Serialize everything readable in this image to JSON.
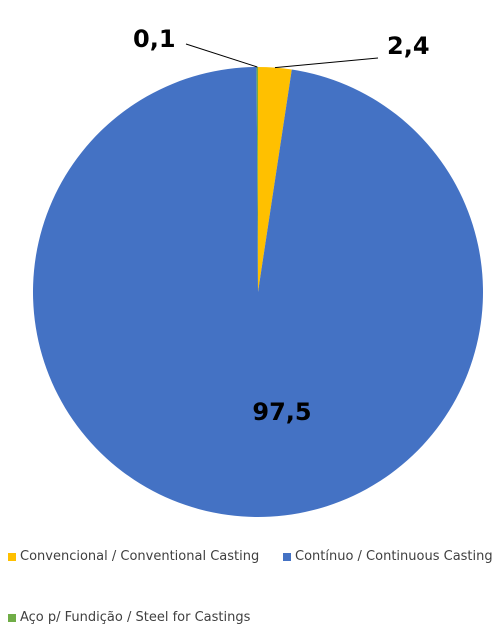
{
  "chart_data": {
    "type": "pie",
    "title": "",
    "start_angle_deg": 90,
    "direction": "clockwise",
    "slices": [
      {
        "label": "Convencional / Conventional Casting",
        "value": 2.4,
        "display": "2,4",
        "color": "#FFC000"
      },
      {
        "label": "Contínuo / Continuous Casting",
        "value": 97.5,
        "display": "97,5",
        "color": "#4472C4"
      },
      {
        "label": "Aço p/ Fundição / Steel for Castings",
        "value": 0.1,
        "display": "0,1",
        "color": "#70AD47"
      }
    ],
    "legend_position": "bottom"
  }
}
